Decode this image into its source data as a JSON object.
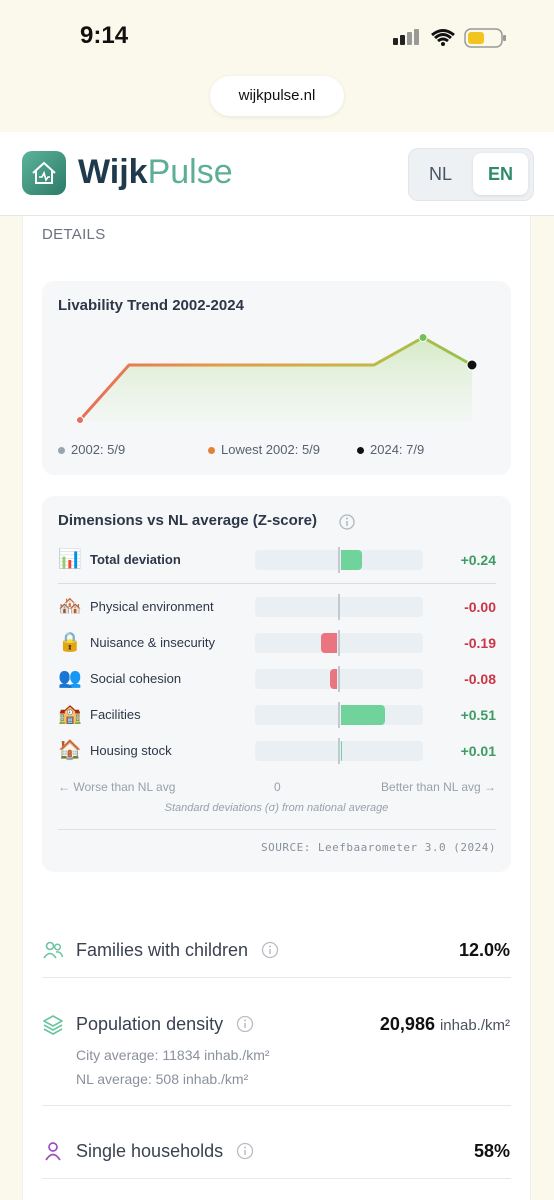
{
  "status_bar": {
    "time": "9:14"
  },
  "browser": {
    "url": "wijkpulse.nl"
  },
  "header": {
    "logo_first": "Wijk",
    "logo_second": "Pulse",
    "languages": [
      "NL",
      "EN"
    ],
    "active_language": "EN"
  },
  "details": {
    "heading": "DETAILS",
    "trend": {
      "title": "Livability Trend 2002-2024",
      "values": [
        5,
        7,
        7,
        7,
        7,
        7,
        7,
        8,
        7
      ],
      "legend": [
        "2002: 5/9",
        "Lowest 2002: 5/9",
        "2024: 7/9"
      ]
    },
    "dimensions": {
      "title": "Dimensions vs NL average (Z-score)",
      "total": {
        "icon": "📊",
        "label": "Total deviation",
        "value": 0.24,
        "value_label": "+0.24",
        "color": "#3e9b63"
      },
      "rows": [
        {
          "icon": "🏘️",
          "label": "Physical environment",
          "value": 0,
          "value_label": "-0.00",
          "color": "#cc3546"
        },
        {
          "icon": "🔒",
          "label": "Nuisance & insecurity",
          "value": -0.19,
          "value_label": "-0.19",
          "color": "#cc3546"
        },
        {
          "icon": "👥",
          "label": "Social cohesion",
          "value": -0.08,
          "value_label": "-0.08",
          "color": "#cc3546"
        },
        {
          "icon": "🏫",
          "label": "Facilities",
          "value": 0.51,
          "value_label": "+0.51",
          "color": "#3e9b63"
        },
        {
          "icon": "🏠",
          "label": "Housing stock",
          "value": 0.01,
          "value_label": "+0.01",
          "color": "#3e9b63"
        }
      ],
      "left_caption": "← Worse than NL avg",
      "zero_label": "0",
      "right_caption": "Better than NL avg →",
      "note": "Standard deviations (σ) from national average",
      "source": "SOURCE: Leefbaarometer 3.0 (2024)"
    }
  },
  "stats": [
    {
      "label": "Families with children",
      "value": "12.0%"
    },
    {
      "label": "Population density",
      "value": "20,986",
      "unit": "inhab./km²",
      "details": [
        "City average: 11834 inhab./km²",
        "NL average: 508 inhab./km²"
      ]
    },
    {
      "label": "Single households",
      "value": "58%"
    }
  ]
}
